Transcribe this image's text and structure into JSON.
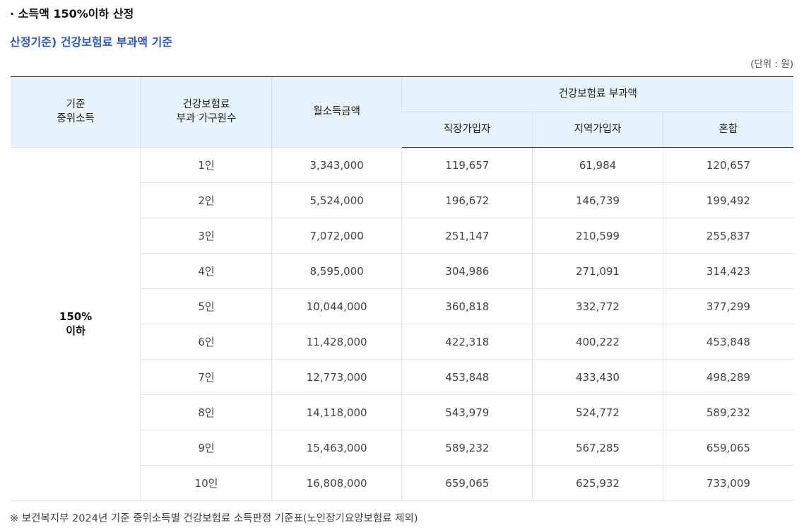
{
  "section_title": "· 소득액 150%이하 산정",
  "criteria_title": "산정기준) 건강보험료 부과액 기준",
  "unit_note": "(단위 : 원)",
  "headers": {
    "median_income": [
      "기준",
      "중위소득"
    ],
    "household": [
      "건강보험료",
      "부과 가구원수"
    ],
    "monthly_income": "월소득금액",
    "premium_group": "건강보험료 부과액",
    "employee": "직장가입자",
    "regional": "지역가입자",
    "mixed": "혼합"
  },
  "group_label": [
    "150%",
    "이하"
  ],
  "rows": [
    {
      "household": "1인",
      "monthly_income": "3,343,000",
      "employee": "119,657",
      "regional": "61,984",
      "mixed": "120,657"
    },
    {
      "household": "2인",
      "monthly_income": "5,524,000",
      "employee": "196,672",
      "regional": "146,739",
      "mixed": "199,492"
    },
    {
      "household": "3인",
      "monthly_income": "7,072,000",
      "employee": "251,147",
      "regional": "210,599",
      "mixed": "255,837"
    },
    {
      "household": "4인",
      "monthly_income": "8,595,000",
      "employee": "304,986",
      "regional": "271,091",
      "mixed": "314,423"
    },
    {
      "household": "5인",
      "monthly_income": "10,044,000",
      "employee": "360,818",
      "regional": "332,772",
      "mixed": "377,299"
    },
    {
      "household": "6인",
      "monthly_income": "11,428,000",
      "employee": "422,318",
      "regional": "400,222",
      "mixed": "453,848"
    },
    {
      "household": "7인",
      "monthly_income": "12,773,000",
      "employee": "453,848",
      "regional": "433,430",
      "mixed": "498,289"
    },
    {
      "household": "8인",
      "monthly_income": "14,118,000",
      "employee": "543,979",
      "regional": "524,772",
      "mixed": "589,232"
    },
    {
      "household": "9인",
      "monthly_income": "15,463,000",
      "employee": "589,232",
      "regional": "567,285",
      "mixed": "659,065"
    },
    {
      "household": "10인",
      "monthly_income": "16,808,000",
      "employee": "659,065",
      "regional": "625,932",
      "mixed": "733,009"
    }
  ],
  "footnote": "※ 보건복지부 2024년 기준 중위소득별 건강보험료 소득판정 기준표(노인장기요양보험료 제외)"
}
